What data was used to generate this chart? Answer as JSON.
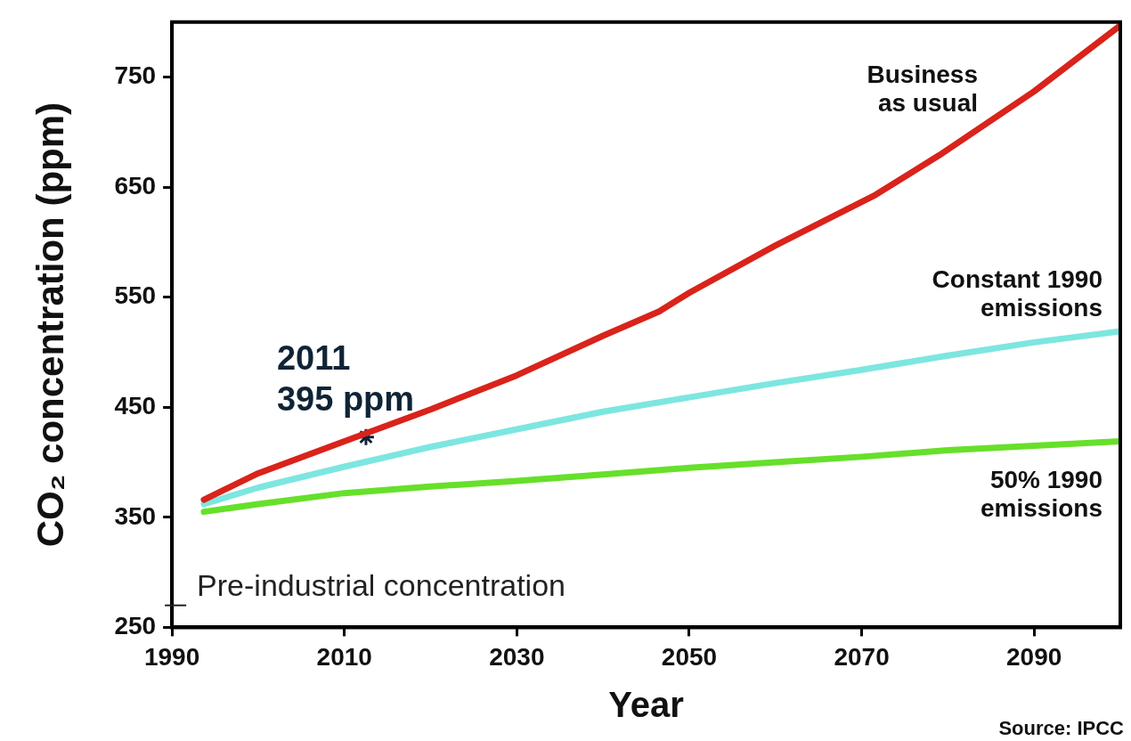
{
  "chart_data": {
    "type": "line",
    "xlabel": "Year",
    "ylabel": "CO₂ concentration (ppm)",
    "xlim": [
      1990,
      2100
    ],
    "xticks": [
      1990,
      2010,
      2030,
      2050,
      2070,
      2090
    ],
    "ylim": [
      250,
      800
    ],
    "yticks": [
      250,
      350,
      450,
      550,
      650,
      750
    ],
    "marker": "none",
    "line_style": "solid",
    "legend": false,
    "ref_lines": [
      {
        "axis": "y",
        "value": 270,
        "label": "Pre-industrial concentration"
      }
    ],
    "series": [
      {
        "name": "Business as usual",
        "color": "#d9231b",
        "x": [
          1993.7,
          2000,
          2010,
          2020,
          2030,
          2040,
          2046.5,
          2050,
          2060,
          2071.6,
          2079,
          2090,
          2100
        ],
        "values": [
          366,
          390,
          419,
          448,
          479,
          515,
          537,
          554,
          597,
          643,
          679,
          737,
          797
        ]
      },
      {
        "name": "Constant 1990 emissions",
        "color": "#7de6e0",
        "x": [
          1993.7,
          2000,
          2010,
          2020,
          2030,
          2040,
          2050,
          2060,
          2070,
          2080,
          2090,
          2100
        ],
        "values": [
          362,
          377,
          396,
          414,
          430,
          446,
          459,
          472,
          484,
          497,
          509,
          519
        ]
      },
      {
        "name": "50% 1990 emissions",
        "color": "#66e02a",
        "x": [
          1993.7,
          2000,
          2010,
          2020,
          2030,
          2040,
          2050,
          2060,
          2070,
          2080,
          2090,
          2100
        ],
        "values": [
          355,
          362,
          372,
          378,
          383,
          389,
          395,
          400,
          405,
          411,
          415,
          419
        ]
      },
      {
        "type": "scatter",
        "color": "#0f2436",
        "marker": "cross",
        "x": [
          2012.5
        ],
        "values": [
          423
        ]
      }
    ],
    "annotations": [
      {
        "text": "2011 395 ppm",
        "x": 2012.5,
        "y": 423
      },
      "Source: IPCC"
    ]
  }
}
